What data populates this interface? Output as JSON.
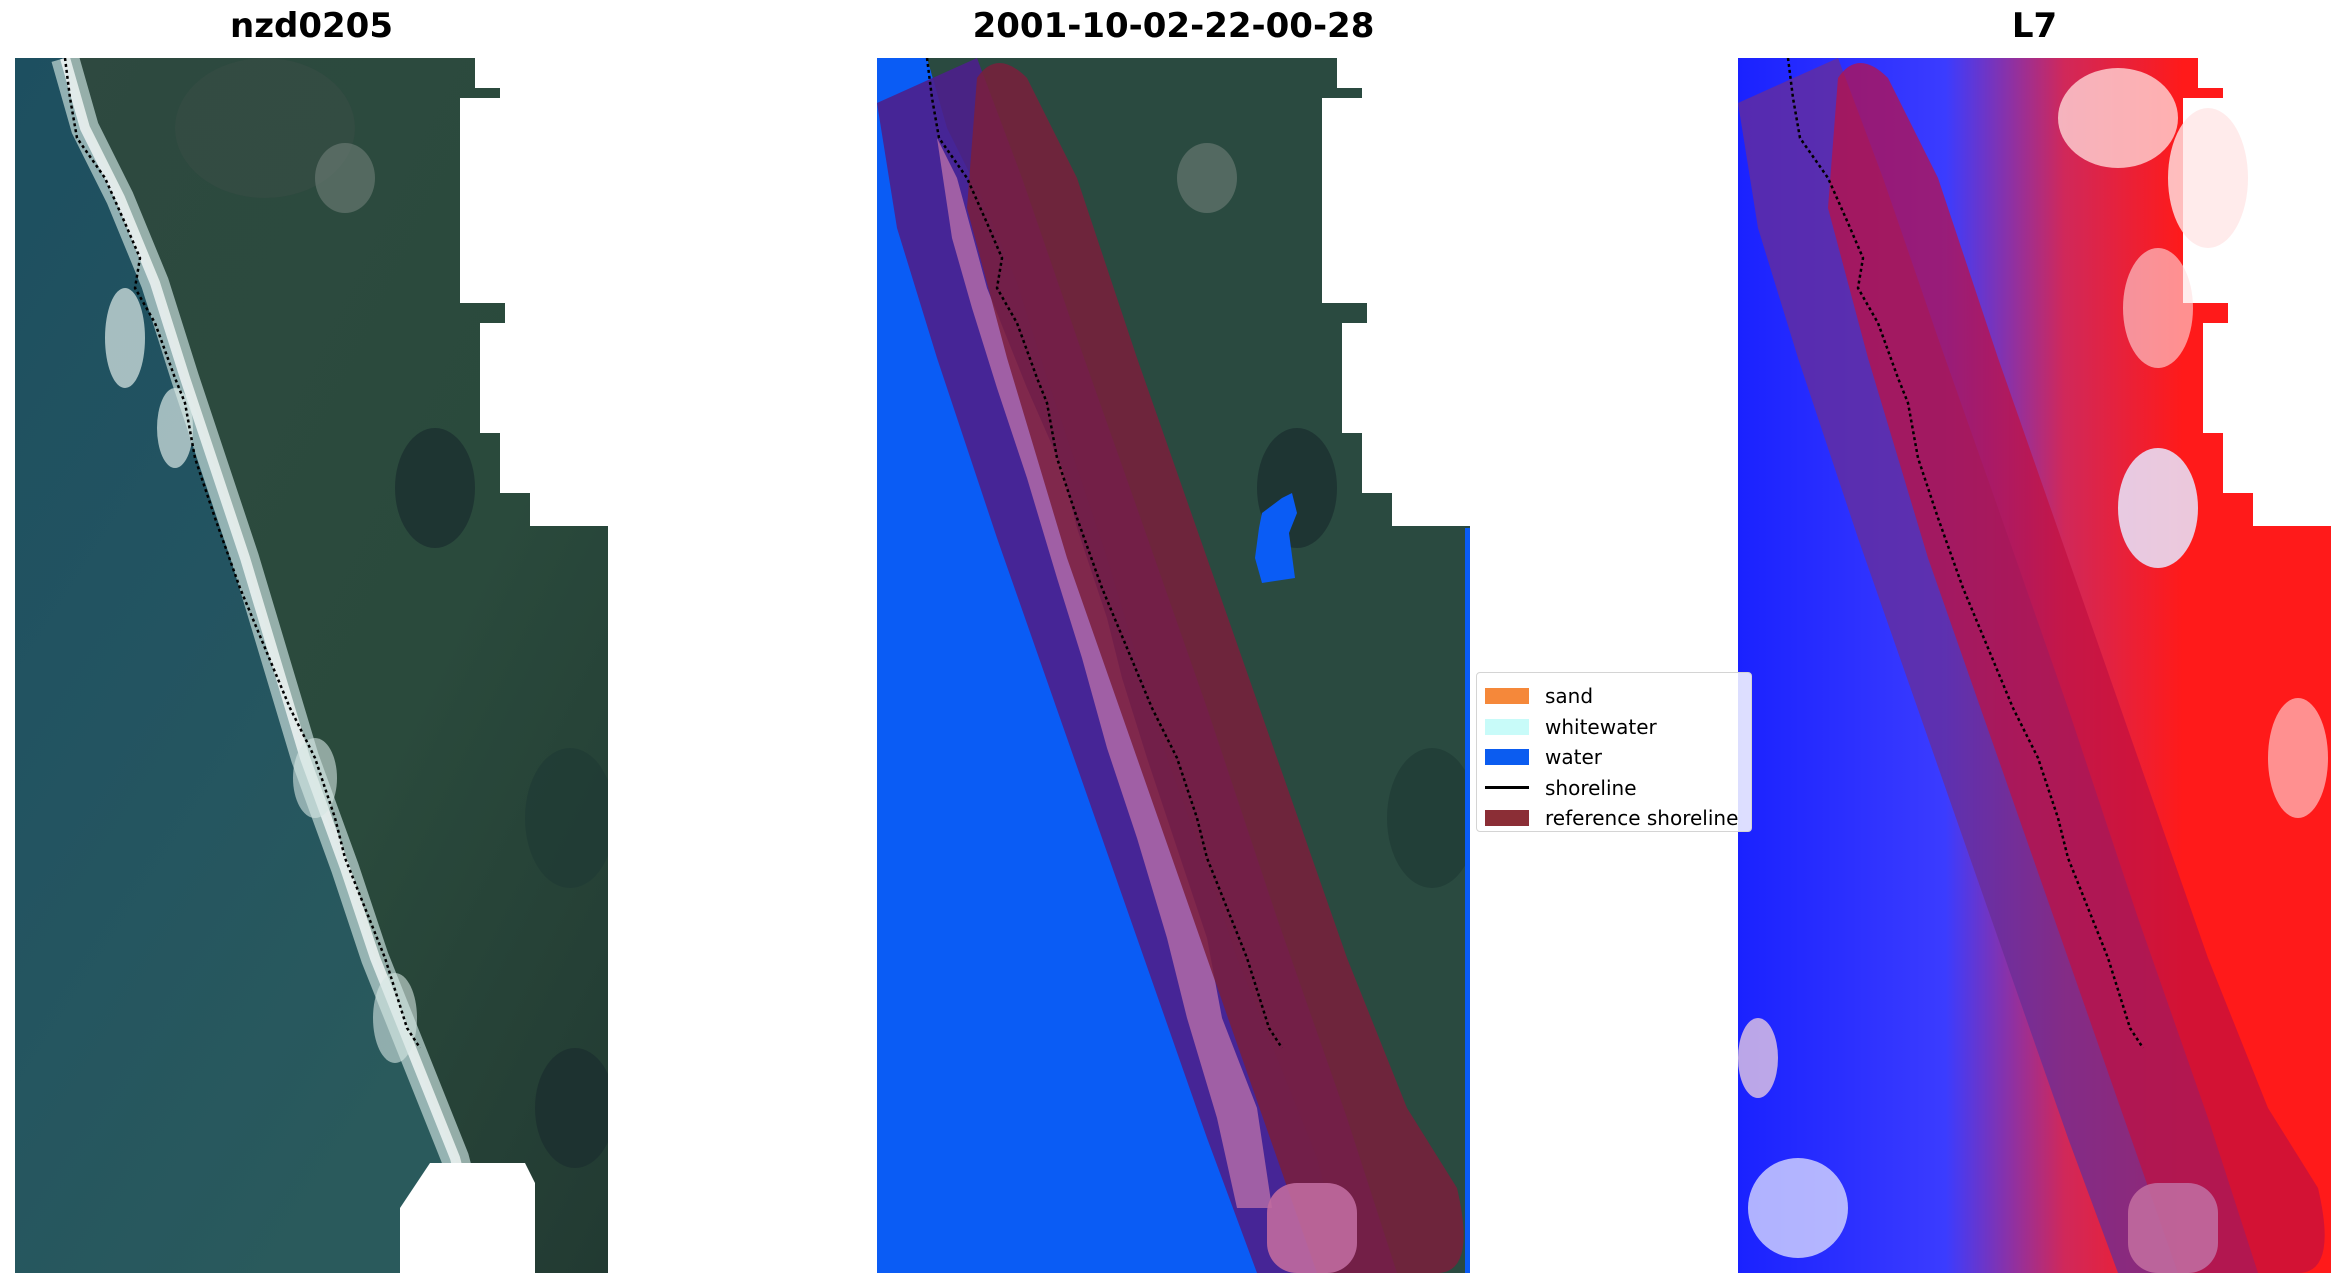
{
  "panels": {
    "left_title": "nzd0205",
    "middle_title": "2001-10-02-22-00-28",
    "right_title": "L7"
  },
  "legend": {
    "items": [
      {
        "label": "sand",
        "type": "patch",
        "color": "#f5883a"
      },
      {
        "label": "whitewater",
        "type": "patch",
        "color": "#c8fbf9"
      },
      {
        "label": "water",
        "type": "patch",
        "color": "#0b5cf0"
      },
      {
        "label": "shoreline",
        "type": "line",
        "color": "#000000"
      },
      {
        "label": "reference shoreline",
        "type": "patch",
        "color": "#8b2e36"
      }
    ]
  },
  "colors": {
    "ocean": "#1e4e5a",
    "land": "#2b4a42",
    "water_class": "#0a5cf5",
    "buffer_purple": "#4d1f8c",
    "reference_band": "#7a1f3c",
    "index_positive": "#ff1a1a",
    "index_negative": "#1a22ff"
  }
}
